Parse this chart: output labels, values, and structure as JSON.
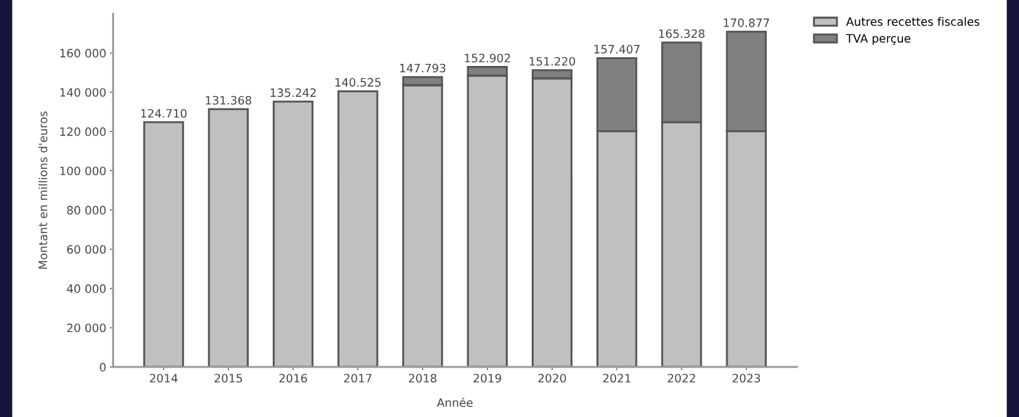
{
  "chart_data": {
    "type": "bar",
    "stacked": true,
    "xlabel": "Année",
    "ylabel": "Montant en millions d'euros",
    "categories": [
      "2014",
      "2015",
      "2016",
      "2017",
      "2018",
      "2019",
      "2020",
      "2021",
      "2022",
      "2023"
    ],
    "series": [
      {
        "name": "Autres recettes fiscales",
        "color": "#c0c0c0",
        "values": [
          124710,
          131368,
          135242,
          140525,
          143600,
          148500,
          147100,
          120200,
          124700,
          120200
        ]
      },
      {
        "name": "TVA perçue",
        "color": "#808080",
        "values": [
          null,
          null,
          null,
          null,
          4193,
          4402,
          4120,
          37207,
          40628,
          50677
        ]
      }
    ],
    "totals": [
      "124.710",
      "131.368",
      "135.242",
      "140.525",
      "147.793",
      "152.902",
      "151.220",
      "157.407",
      "165.328",
      "170.877"
    ],
    "ylim": [
      0,
      180000
    ],
    "yticks": [
      0,
      {
        "value": 20000,
        "label": "20 000"
      },
      {
        "value": 40000,
        "label": "40 000"
      },
      {
        "value": 60000,
        "label": "60 000"
      },
      {
        "value": 80000,
        "label": "80 000"
      },
      {
        "value": 100000,
        "label": "100 000"
      },
      {
        "value": 120000,
        "label": "120 000"
      },
      {
        "value": 140000,
        "label": "140 000"
      },
      {
        "value": 160000,
        "label": "160 000"
      }
    ],
    "grid": false,
    "legend": "top right"
  }
}
